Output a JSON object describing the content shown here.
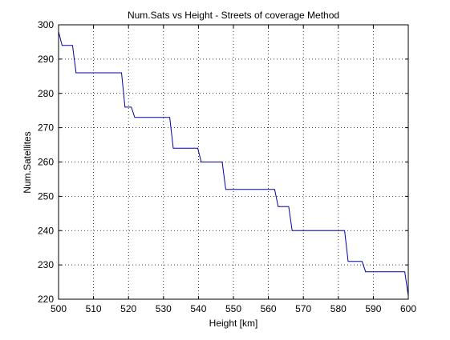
{
  "chart_data": {
    "type": "line",
    "title": "Num.Sats vs Height - Streets of coverage Method",
    "xlabel": "Height [km]",
    "ylabel": "Num.Satellites",
    "xlim": [
      500,
      600
    ],
    "ylim": [
      220,
      300
    ],
    "xticks": [
      500,
      510,
      520,
      530,
      540,
      550,
      560,
      570,
      580,
      590,
      600
    ],
    "yticks": [
      220,
      230,
      240,
      250,
      260,
      270,
      280,
      290,
      300
    ],
    "grid": true,
    "series": [
      {
        "color": "#0000aa",
        "x": [
          500.0,
          501.0,
          504.0,
          505.0,
          518.0,
          519.0,
          520.8,
          521.8,
          531.8,
          532.8,
          539.8,
          540.8,
          546.8,
          547.8,
          561.8,
          562.8,
          565.8,
          566.8,
          581.8,
          582.8,
          586.8,
          587.8,
          599.0,
          600.0
        ],
        "y": [
          298,
          294,
          294,
          286,
          286,
          276,
          276,
          273,
          273,
          264,
          264,
          260,
          260,
          252,
          252,
          247,
          247,
          240,
          240,
          231,
          231,
          228,
          228,
          221
        ]
      }
    ]
  }
}
